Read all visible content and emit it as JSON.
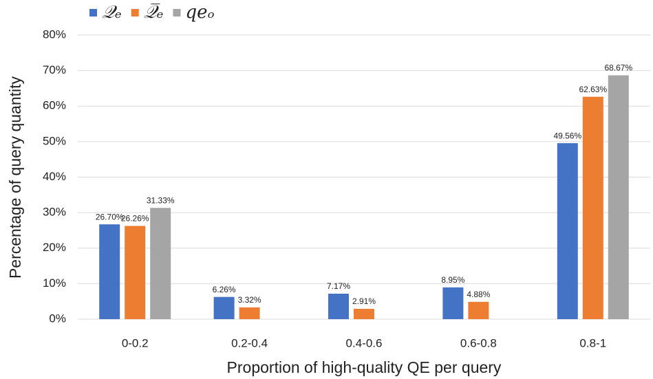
{
  "chart_data": {
    "type": "bar",
    "x_label": "Proportion of high-quality QE per query",
    "y_label": "Percentage of query quantity",
    "categories": [
      "0-0.2",
      "0.2-0.4",
      "0.4-0.6",
      "0.6-0.8",
      "0.8-1"
    ],
    "series": [
      {
        "name": "𝒬ₑ",
        "color": "#4472c4",
        "values": [
          26.7,
          6.26,
          7.17,
          8.95,
          49.56
        ],
        "value_labels": [
          "26.70%",
          "6.26%",
          "7.17%",
          "8.95%",
          "49.56%"
        ]
      },
      {
        "name": "𝒬̅ₑ",
        "color": "#ed7d31",
        "values": [
          26.26,
          3.32,
          2.91,
          4.88,
          62.63
        ],
        "value_labels": [
          "26.26%",
          "3.32%",
          "2.91%",
          "4.88%",
          "62.63%"
        ]
      },
      {
        "name": "qeₒ",
        "color": "#a5a5a5",
        "values": [
          31.33,
          null,
          null,
          null,
          68.67
        ],
        "value_labels": [
          "31.33%",
          null,
          null,
          null,
          "68.67%"
        ]
      }
    ],
    "ylim": [
      0,
      80
    ],
    "yticks": [
      {
        "value": 0,
        "label": "0%"
      },
      {
        "value": 10,
        "label": "10%"
      },
      {
        "value": 20,
        "label": "20%"
      },
      {
        "value": 30,
        "label": "30%"
      },
      {
        "value": 40,
        "label": "40%"
      },
      {
        "value": 50,
        "label": "50%"
      },
      {
        "value": 60,
        "label": "60%"
      },
      {
        "value": 70,
        "label": "70%"
      },
      {
        "value": 80,
        "label": "80%"
      }
    ],
    "grid": true
  }
}
